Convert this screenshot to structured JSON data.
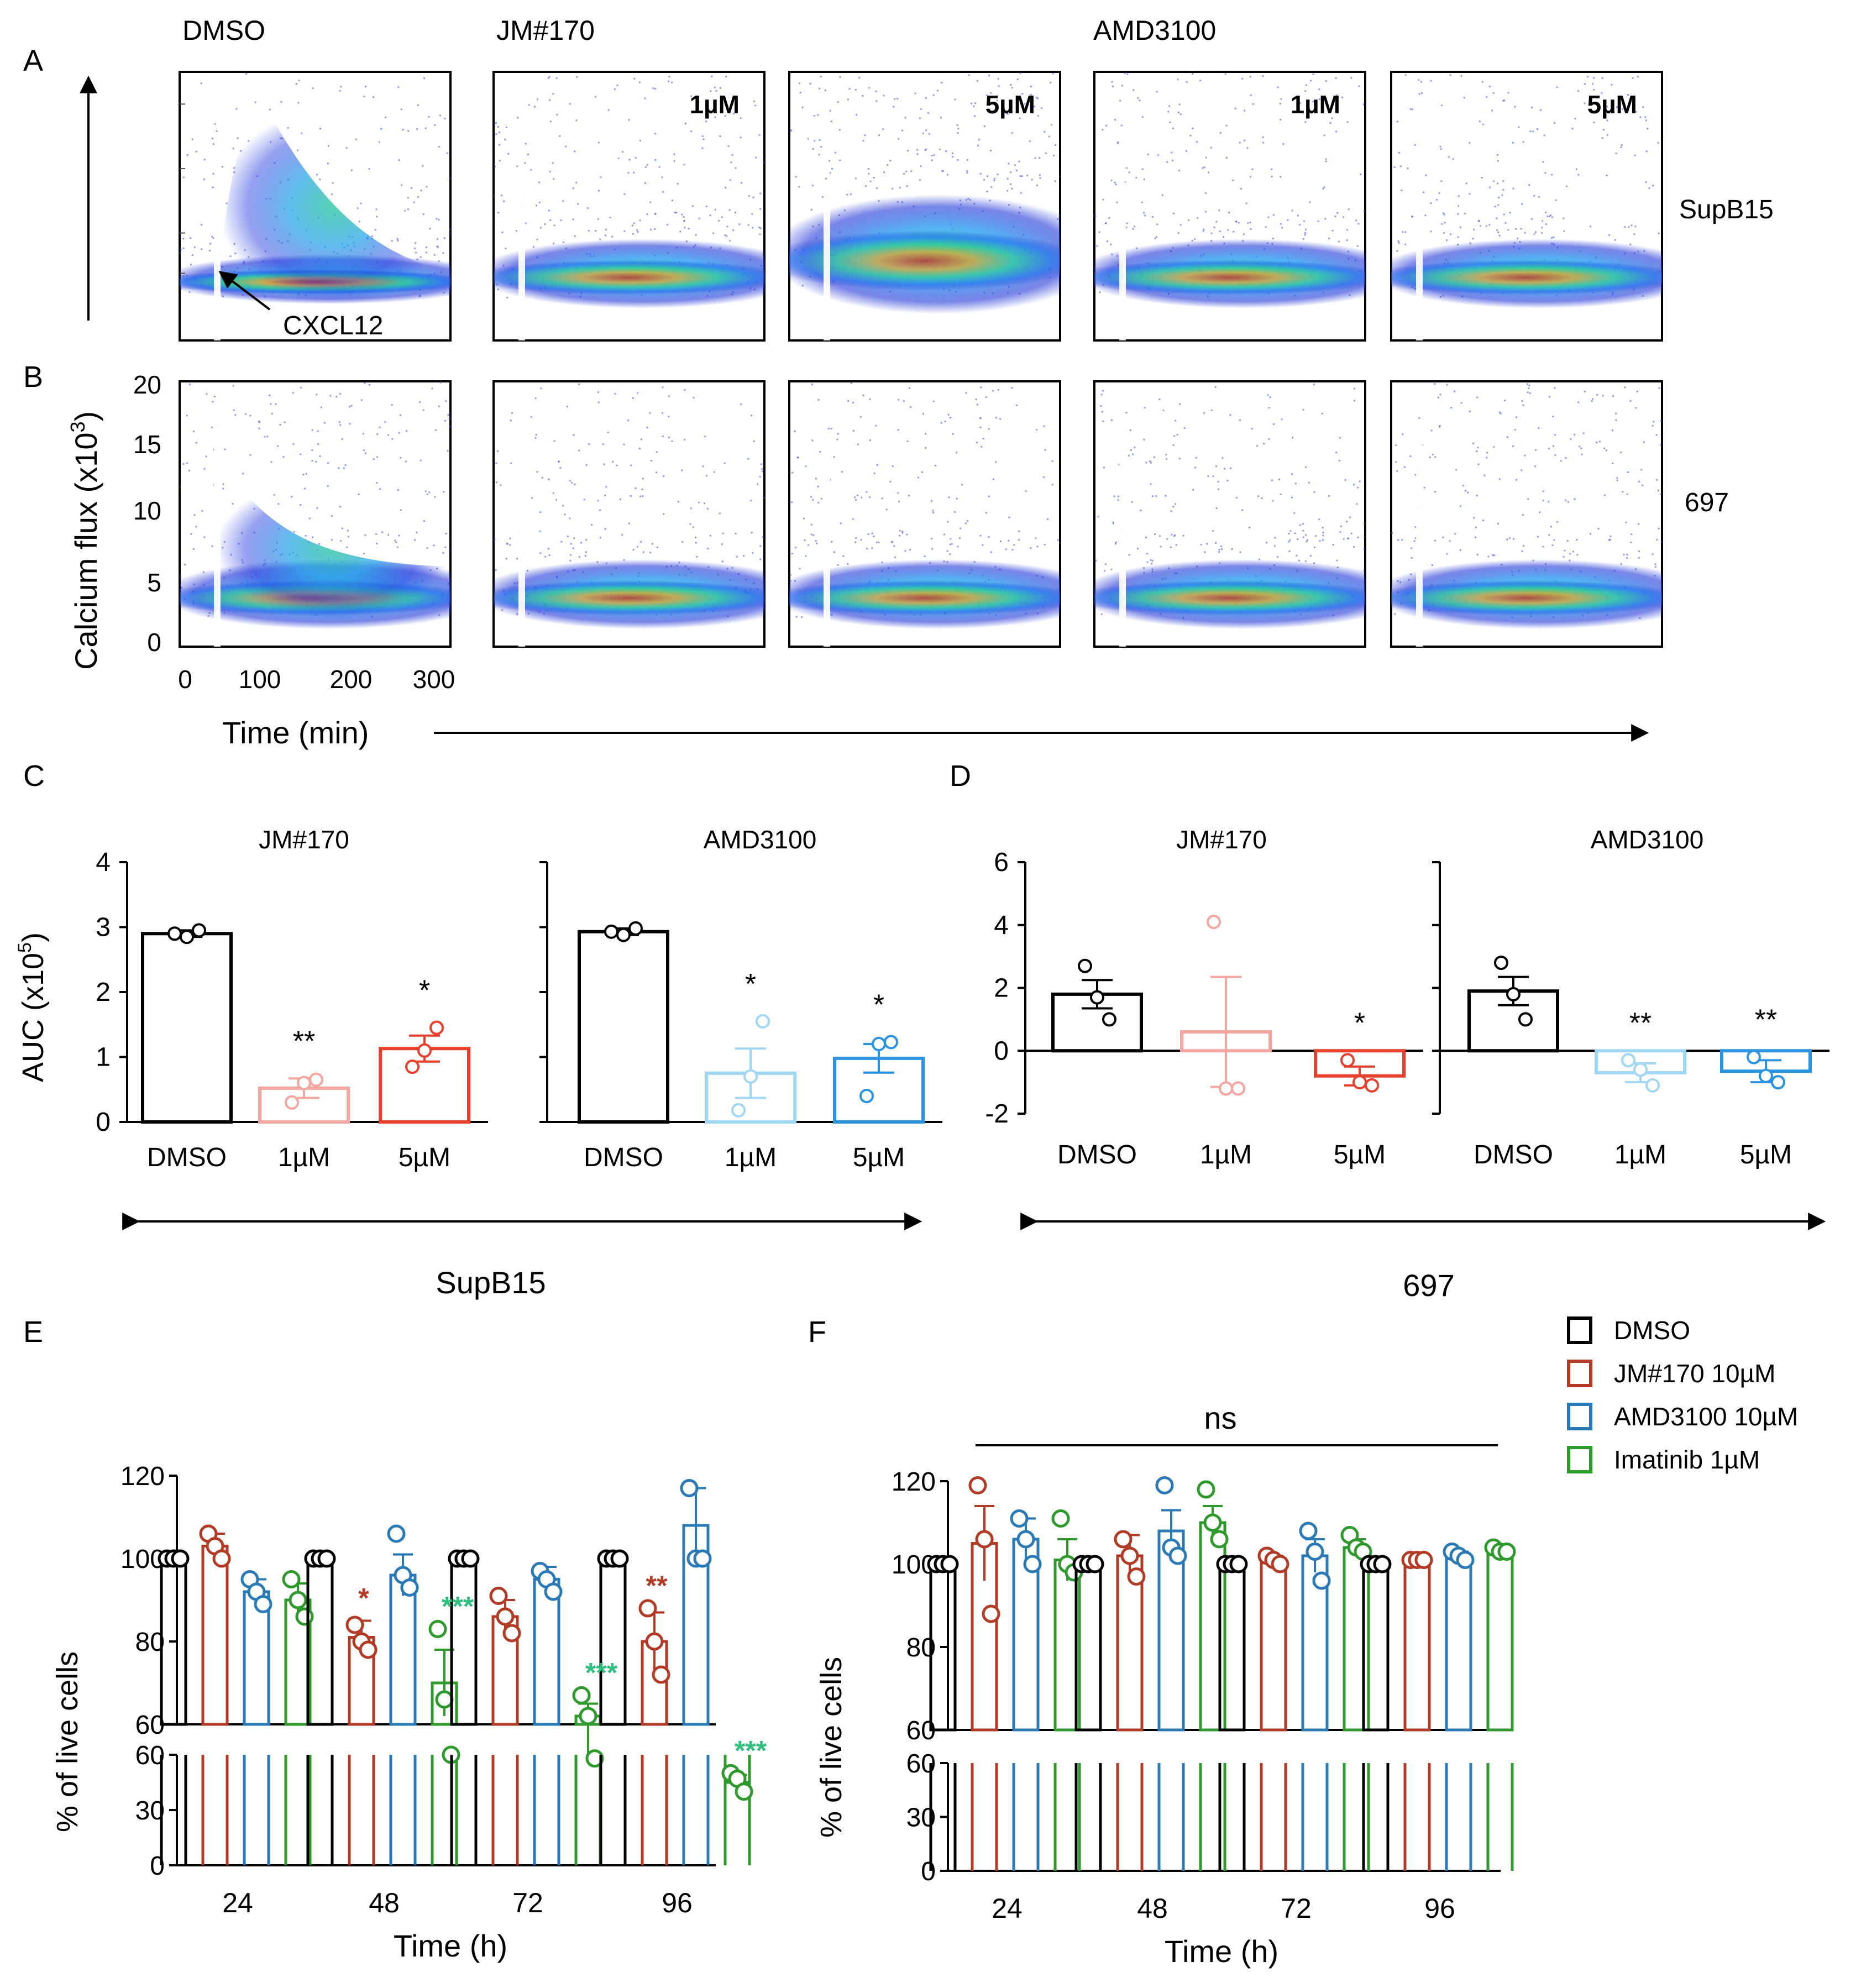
{
  "panel_letters": [
    "A",
    "B",
    "C",
    "D",
    "E",
    "F"
  ],
  "flow_panels": {
    "header_dmso": "DMSO",
    "header_jm": "JM#170",
    "header_amd": "AMD3100",
    "conc_labels": [
      "1µM",
      "5µM",
      "1µM",
      "5µM"
    ],
    "row_a_cell_line": "SupB15",
    "row_b_cell_line": "697",
    "annotation": "CXCL12",
    "ylabel": "Calcium flux (x10",
    "ylabel_sup": "3",
    "ylabel_end": ")",
    "xlabel": "Time (min)",
    "yticks": [
      "0",
      "5",
      "10",
      "15",
      "20"
    ],
    "xticks": [
      "0",
      "100",
      "200",
      "300"
    ],
    "colors": {
      "dot": "#3a4cd8",
      "mid": "#22c59a",
      "hot": "#f25a1e",
      "core": "#d81b1b"
    }
  },
  "auc_section": {
    "ylabel": "AUC (x10",
    "ylabel_sup": "5",
    "ylabel_end": ")",
    "supb15_label": "SupB15",
    "line697_label": "697"
  },
  "viability_section": {
    "ylabel": "% of live cells",
    "xlabel": "Time (h)",
    "upper_ticks": [
      "60",
      "80",
      "100",
      "120"
    ],
    "lower_ticks": [
      "0",
      "30",
      "60"
    ],
    "ns_label": "ns"
  },
  "legend": [
    {
      "label": "DMSO",
      "color": "#000000"
    },
    {
      "label": "JM#170 10µM",
      "color": "#b33a24"
    },
    {
      "label": "AMD3100 10µM",
      "color": "#2a7ab8"
    },
    {
      "label": "Imatinib 1µM",
      "color": "#2e9a2c"
    }
  ],
  "chart_data": [
    {
      "id": "C-JM170",
      "type": "bar",
      "title": "JM#170",
      "cell_line": "SupB15",
      "categories": [
        "DMSO",
        "1µM",
        "5µM"
      ],
      "values": [
        2.9,
        0.52,
        1.13
      ],
      "errors": [
        0.05,
        0.15,
        0.2
      ],
      "points": [
        [
          2.9,
          2.85,
          2.95
        ],
        [
          0.3,
          0.6,
          0.65
        ],
        [
          0.85,
          1.1,
          1.45
        ]
      ],
      "stars": [
        "",
        "**",
        "*"
      ],
      "colors": [
        "#000000",
        "#f4a6a0",
        "#e8402c"
      ],
      "yticks": [
        0,
        1,
        2,
        3,
        4
      ],
      "ylim": [
        0,
        4
      ],
      "ylabel": "AUC (x10^5)"
    },
    {
      "id": "C-AMD3100",
      "type": "bar",
      "title": "AMD3100",
      "cell_line": "SupB15",
      "categories": [
        "DMSO",
        "1µM",
        "5µM"
      ],
      "values": [
        2.93,
        0.75,
        0.98
      ],
      "errors": [
        0.05,
        0.38,
        0.22
      ],
      "points": [
        [
          2.93,
          2.88,
          2.98
        ],
        [
          0.18,
          0.7,
          1.55
        ],
        [
          0.4,
          1.2,
          1.23
        ]
      ],
      "stars": [
        "",
        "*",
        "*"
      ],
      "colors": [
        "#000000",
        "#9fd7f4",
        "#2a94e2"
      ],
      "ylim": [
        0,
        4
      ]
    },
    {
      "id": "D-JM170",
      "type": "bar",
      "title": "JM#170",
      "cell_line": "697",
      "categories": [
        "DMSO",
        "1µM",
        "5µM"
      ],
      "values": [
        1.8,
        0.6,
        -0.8
      ],
      "errors": [
        0.45,
        1.75,
        0.3
      ],
      "points": [
        [
          2.7,
          1.7,
          1.0
        ],
        [
          4.1,
          -1.2,
          -1.2
        ],
        [
          -0.3,
          -1.0,
          -1.1
        ]
      ],
      "stars": [
        "",
        "",
        "*"
      ],
      "colors": [
        "#000000",
        "#f4a6a0",
        "#e8402c"
      ],
      "yticks": [
        -2,
        0,
        2,
        4,
        6
      ],
      "ylim": [
        -2,
        6
      ]
    },
    {
      "id": "D-AMD3100",
      "type": "bar",
      "title": "AMD3100",
      "cell_line": "697",
      "categories": [
        "DMSO",
        "1µM",
        "5µM"
      ],
      "values": [
        1.9,
        -0.7,
        -0.65
      ],
      "errors": [
        0.45,
        0.3,
        0.35
      ],
      "points": [
        [
          2.8,
          1.8,
          1.0
        ],
        [
          -0.3,
          -0.6,
          -1.1
        ],
        [
          -0.2,
          -0.8,
          -1.0
        ]
      ],
      "stars": [
        "",
        "**",
        "**"
      ],
      "colors": [
        "#000000",
        "#9fd7f4",
        "#2a94e2"
      ],
      "ylim": [
        -2,
        6
      ]
    },
    {
      "id": "E",
      "type": "bar",
      "cell_line": "SupB15",
      "categories": [
        "24",
        "48",
        "72",
        "96"
      ],
      "series": [
        {
          "name": "DMSO",
          "values": [
            100,
            100,
            100,
            100
          ],
          "errors": [
            0,
            0,
            0,
            0
          ],
          "points": [
            [
              100,
              100,
              100
            ],
            [
              100,
              100,
              100
            ],
            [
              100,
              100,
              100
            ],
            [
              100,
              100,
              100
            ]
          ]
        },
        {
          "name": "JM#170 10µM",
          "values": [
            103,
            81,
            86,
            80
          ],
          "errors": [
            3,
            4,
            4,
            7
          ],
          "points": [
            [
              106,
              103,
              100
            ],
            [
              84,
              80,
              78
            ],
            [
              91,
              86,
              82
            ],
            [
              88,
              80,
              72
            ]
          ]
        },
        {
          "name": "AMD3100 10µM",
          "values": [
            92,
            96,
            95,
            108
          ],
          "errors": [
            3,
            5,
            3,
            9
          ],
          "points": [
            [
              95,
              92,
              89
            ],
            [
              106,
              96,
              93
            ],
            [
              97,
              95,
              92
            ],
            [
              117,
              100,
              100
            ]
          ]
        },
        {
          "name": "Imatinib 1µM",
          "values": [
            90,
            70,
            62,
            45
          ],
          "errors": [
            4,
            8,
            3,
            4
          ],
          "points": [
            [
              95,
              90,
              86
            ],
            [
              83,
              66,
              60
            ],
            [
              67,
              62,
              58
            ],
            [
              50,
              47,
              40
            ]
          ]
        }
      ],
      "stars": [
        {
          "category": "48",
          "series": "JM#170 10µM",
          "text": "*"
        },
        {
          "category": "48",
          "series": "Imatinib 1µM",
          "text": "***"
        },
        {
          "category": "72",
          "series": "Imatinib 1µM",
          "text": "***"
        },
        {
          "category": "96",
          "series": "JM#170 10µM",
          "text": "**"
        },
        {
          "category": "96",
          "series": "Imatinib 1µM",
          "text": "***"
        }
      ],
      "ylim_upper": [
        60,
        120
      ],
      "ylim_lower": [
        0,
        60
      ]
    },
    {
      "id": "F",
      "type": "bar",
      "cell_line": "697",
      "categories": [
        "24",
        "48",
        "72",
        "96"
      ],
      "series": [
        {
          "name": "DMSO",
          "values": [
            100,
            100,
            100,
            100
          ],
          "errors": [
            0,
            0,
            0,
            0
          ],
          "points": [
            [
              100,
              100,
              100
            ],
            [
              100,
              100,
              100
            ],
            [
              100,
              100,
              100
            ],
            [
              100,
              100,
              100
            ]
          ]
        },
        {
          "name": "JM#170 10µM",
          "values": [
            105,
            102,
            101,
            101
          ],
          "errors": [
            9,
            5,
            1,
            0.5
          ],
          "points": [
            [
              119,
              106,
              88
            ],
            [
              106,
              102,
              97
            ],
            [
              102,
              101,
              100
            ],
            [
              101,
              101,
              101
            ]
          ]
        },
        {
          "name": "AMD3100 10µM",
          "values": [
            106,
            108,
            102,
            102
          ],
          "errors": [
            5,
            5,
            4,
            1
          ],
          "points": [
            [
              111,
              106,
              100
            ],
            [
              119,
              104,
              102
            ],
            [
              108,
              103,
              96
            ],
            [
              103,
              102,
              101
            ]
          ]
        },
        {
          "name": "Imatinib 1µM",
          "values": [
            101,
            110,
            104,
            103
          ],
          "errors": [
            5,
            4,
            2,
            0.5
          ],
          "points": [
            [
              111,
              100,
              98
            ],
            [
              118,
              110,
              106
            ],
            [
              107,
              104,
              103
            ],
            [
              104,
              103,
              103
            ]
          ]
        }
      ],
      "annotation": "ns",
      "ylim_upper": [
        60,
        120
      ],
      "ylim_lower": [
        0,
        60
      ]
    }
  ]
}
